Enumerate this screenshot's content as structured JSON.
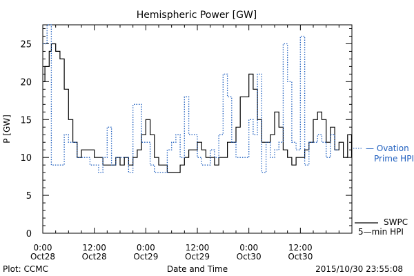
{
  "chart_data": {
    "type": "line",
    "title": "Hemispheric Power [GW]",
    "xlabel": "Date and Time",
    "ylabel": "P [GW]",
    "ylim": [
      0,
      27.5
    ],
    "xlim": [
      "2015-10-28 00:00",
      "2015-10-31 00:00"
    ],
    "y_ticks": [
      0,
      5,
      10,
      15,
      20,
      25
    ],
    "x_ticks": [
      {
        "x": "2015-10-28 00:00",
        "label": [
          "0:00",
          "Oct28"
        ]
      },
      {
        "x": "2015-10-28 12:00",
        "label": [
          "12:00",
          "Oct28"
        ]
      },
      {
        "x": "2015-10-29 00:00",
        "label": [
          "0:00",
          "Oct29"
        ]
      },
      {
        "x": "2015-10-29 12:00",
        "label": [
          "12:00",
          "Oct29"
        ]
      },
      {
        "x": "2015-10-30 00:00",
        "label": [
          "0:00",
          "Oct30"
        ]
      },
      {
        "x": "2015-10-30 12:00",
        "label": [
          "12:00",
          "Oct30"
        ]
      }
    ],
    "grid": false,
    "series": [
      {
        "name": "SWPC 5-min HPI",
        "color": "#000000",
        "style": "solid",
        "points": [
          [
            "2015-10-28 00:00",
            20
          ],
          [
            "2015-10-28 00:30",
            22
          ],
          [
            "2015-10-28 01:00",
            22
          ],
          [
            "2015-10-28 01:30",
            24
          ],
          [
            "2015-10-28 02:00",
            25
          ],
          [
            "2015-10-28 02:30",
            25
          ],
          [
            "2015-10-28 03:00",
            24
          ],
          [
            "2015-10-28 04:00",
            23
          ],
          [
            "2015-10-28 05:00",
            19
          ],
          [
            "2015-10-28 06:00",
            15
          ],
          [
            "2015-10-28 07:00",
            12
          ],
          [
            "2015-10-28 08:00",
            10
          ],
          [
            "2015-10-28 09:00",
            11
          ],
          [
            "2015-10-28 11:00",
            11
          ],
          [
            "2015-10-28 12:00",
            10
          ],
          [
            "2015-10-28 13:00",
            10
          ],
          [
            "2015-10-28 14:00",
            9
          ],
          [
            "2015-10-28 16:00",
            9
          ],
          [
            "2015-10-28 17:00",
            10
          ],
          [
            "2015-10-28 18:00",
            9
          ],
          [
            "2015-10-28 19:00",
            10
          ],
          [
            "2015-10-28 20:00",
            9
          ],
          [
            "2015-10-28 21:00",
            10
          ],
          [
            "2015-10-28 22:00",
            11
          ],
          [
            "2015-10-28 23:00",
            13
          ],
          [
            "2015-10-29 00:00",
            15
          ],
          [
            "2015-10-29 01:00",
            13
          ],
          [
            "2015-10-29 02:00",
            10
          ],
          [
            "2015-10-29 03:00",
            9
          ],
          [
            "2015-10-29 04:00",
            9
          ],
          [
            "2015-10-29 05:00",
            8
          ],
          [
            "2015-10-29 07:00",
            8
          ],
          [
            "2015-10-29 08:00",
            9
          ],
          [
            "2015-10-29 09:00",
            10
          ],
          [
            "2015-10-29 10:00",
            11
          ],
          [
            "2015-10-29 11:00",
            11
          ],
          [
            "2015-10-29 12:00",
            12
          ],
          [
            "2015-10-29 13:00",
            11
          ],
          [
            "2015-10-29 14:00",
            10
          ],
          [
            "2015-10-29 15:00",
            10
          ],
          [
            "2015-10-29 16:00",
            9
          ],
          [
            "2015-10-29 17:00",
            10
          ],
          [
            "2015-10-29 18:00",
            10
          ],
          [
            "2015-10-29 19:00",
            12
          ],
          [
            "2015-10-29 20:00",
            12
          ],
          [
            "2015-10-29 21:00",
            14
          ],
          [
            "2015-10-29 22:00",
            18
          ],
          [
            "2015-10-30 00:00",
            21
          ],
          [
            "2015-10-30 01:00",
            19
          ],
          [
            "2015-10-30 02:00",
            15
          ],
          [
            "2015-10-30 03:00",
            12
          ],
          [
            "2015-10-30 04:00",
            12
          ],
          [
            "2015-10-30 05:00",
            13
          ],
          [
            "2015-10-30 06:00",
            16
          ],
          [
            "2015-10-30 07:00",
            14
          ],
          [
            "2015-10-30 08:00",
            11
          ],
          [
            "2015-10-30 09:00",
            10
          ],
          [
            "2015-10-30 10:00",
            9
          ],
          [
            "2015-10-30 11:00",
            10
          ],
          [
            "2015-10-30 12:00",
            10
          ],
          [
            "2015-10-30 13:00",
            11
          ],
          [
            "2015-10-30 14:00",
            12
          ],
          [
            "2015-10-30 15:00",
            15
          ],
          [
            "2015-10-30 16:00",
            16
          ],
          [
            "2015-10-30 17:00",
            15
          ],
          [
            "2015-10-30 18:00",
            12
          ],
          [
            "2015-10-30 19:00",
            14
          ],
          [
            "2015-10-30 20:00",
            11
          ],
          [
            "2015-10-30 21:00",
            12
          ],
          [
            "2015-10-30 22:00",
            10
          ],
          [
            "2015-10-30 23:00",
            13
          ],
          [
            "2015-10-30 23:55",
            10
          ]
        ]
      },
      {
        "name": "Ovation Prime HPI",
        "color": "#1f5fbf",
        "style": "dotted",
        "points": [
          [
            "2015-10-28 00:00",
            25
          ],
          [
            "2015-10-28 01:00",
            27.5
          ],
          [
            "2015-10-28 02:00",
            9
          ],
          [
            "2015-10-28 04:00",
            9
          ],
          [
            "2015-10-28 05:00",
            13
          ],
          [
            "2015-10-28 06:00",
            12
          ],
          [
            "2015-10-28 08:00",
            10
          ],
          [
            "2015-10-28 11:00",
            9
          ],
          [
            "2015-10-28 13:00",
            8
          ],
          [
            "2015-10-28 14:00",
            10
          ],
          [
            "2015-10-28 15:00",
            14
          ],
          [
            "2015-10-28 16:00",
            9
          ],
          [
            "2015-10-28 17:00",
            10
          ],
          [
            "2015-10-28 20:00",
            8
          ],
          [
            "2015-10-28 21:00",
            17
          ],
          [
            "2015-10-28 23:00",
            12
          ],
          [
            "2015-10-29 01:00",
            9
          ],
          [
            "2015-10-29 02:00",
            8
          ],
          [
            "2015-10-29 05:00",
            11
          ],
          [
            "2015-10-29 06:00",
            12
          ],
          [
            "2015-10-29 07:00",
            13
          ],
          [
            "2015-10-29 08:00",
            10
          ],
          [
            "2015-10-29 09:00",
            18
          ],
          [
            "2015-10-29 10:00",
            13
          ],
          [
            "2015-10-29 12:00",
            10
          ],
          [
            "2015-10-29 13:00",
            9
          ],
          [
            "2015-10-29 15:00",
            11
          ],
          [
            "2015-10-29 16:00",
            10
          ],
          [
            "2015-10-29 17:00",
            13
          ],
          [
            "2015-10-29 18:00",
            21
          ],
          [
            "2015-10-29 19:00",
            18
          ],
          [
            "2015-10-29 20:00",
            12
          ],
          [
            "2015-10-29 21:00",
            10
          ],
          [
            "2015-10-30 00:00",
            15
          ],
          [
            "2015-10-30 01:00",
            13
          ],
          [
            "2015-10-30 02:00",
            21
          ],
          [
            "2015-10-30 03:00",
            8
          ],
          [
            "2015-10-30 04:00",
            12
          ],
          [
            "2015-10-30 05:00",
            10
          ],
          [
            "2015-10-30 06:00",
            11
          ],
          [
            "2015-10-30 07:00",
            12
          ],
          [
            "2015-10-30 08:00",
            25
          ],
          [
            "2015-10-30 09:00",
            20
          ],
          [
            "2015-10-30 10:00",
            12
          ],
          [
            "2015-10-30 11:00",
            11
          ],
          [
            "2015-10-30 12:00",
            26
          ],
          [
            "2015-10-30 13:00",
            9
          ],
          [
            "2015-10-30 14:00",
            12
          ],
          [
            "2015-10-30 16:00",
            13
          ],
          [
            "2015-10-30 17:00",
            12
          ],
          [
            "2015-10-30 18:00",
            10
          ],
          [
            "2015-10-30 19:00",
            13
          ],
          [
            "2015-10-30 20:00",
            11
          ],
          [
            "2015-10-30 21:00",
            11
          ]
        ]
      }
    ],
    "legend": [
      {
        "lines": [
          "— Ovation",
          "Prime HPI"
        ],
        "color": "#1f5fbf",
        "position": "right-middle"
      },
      {
        "lines": [
          "SWPC",
          "5—min HPI"
        ],
        "color": "#000000",
        "position": "right-bottom"
      }
    ],
    "footer": {
      "left": "Plot: CCMC",
      "right": "2015/10/30 23:55:08"
    }
  }
}
